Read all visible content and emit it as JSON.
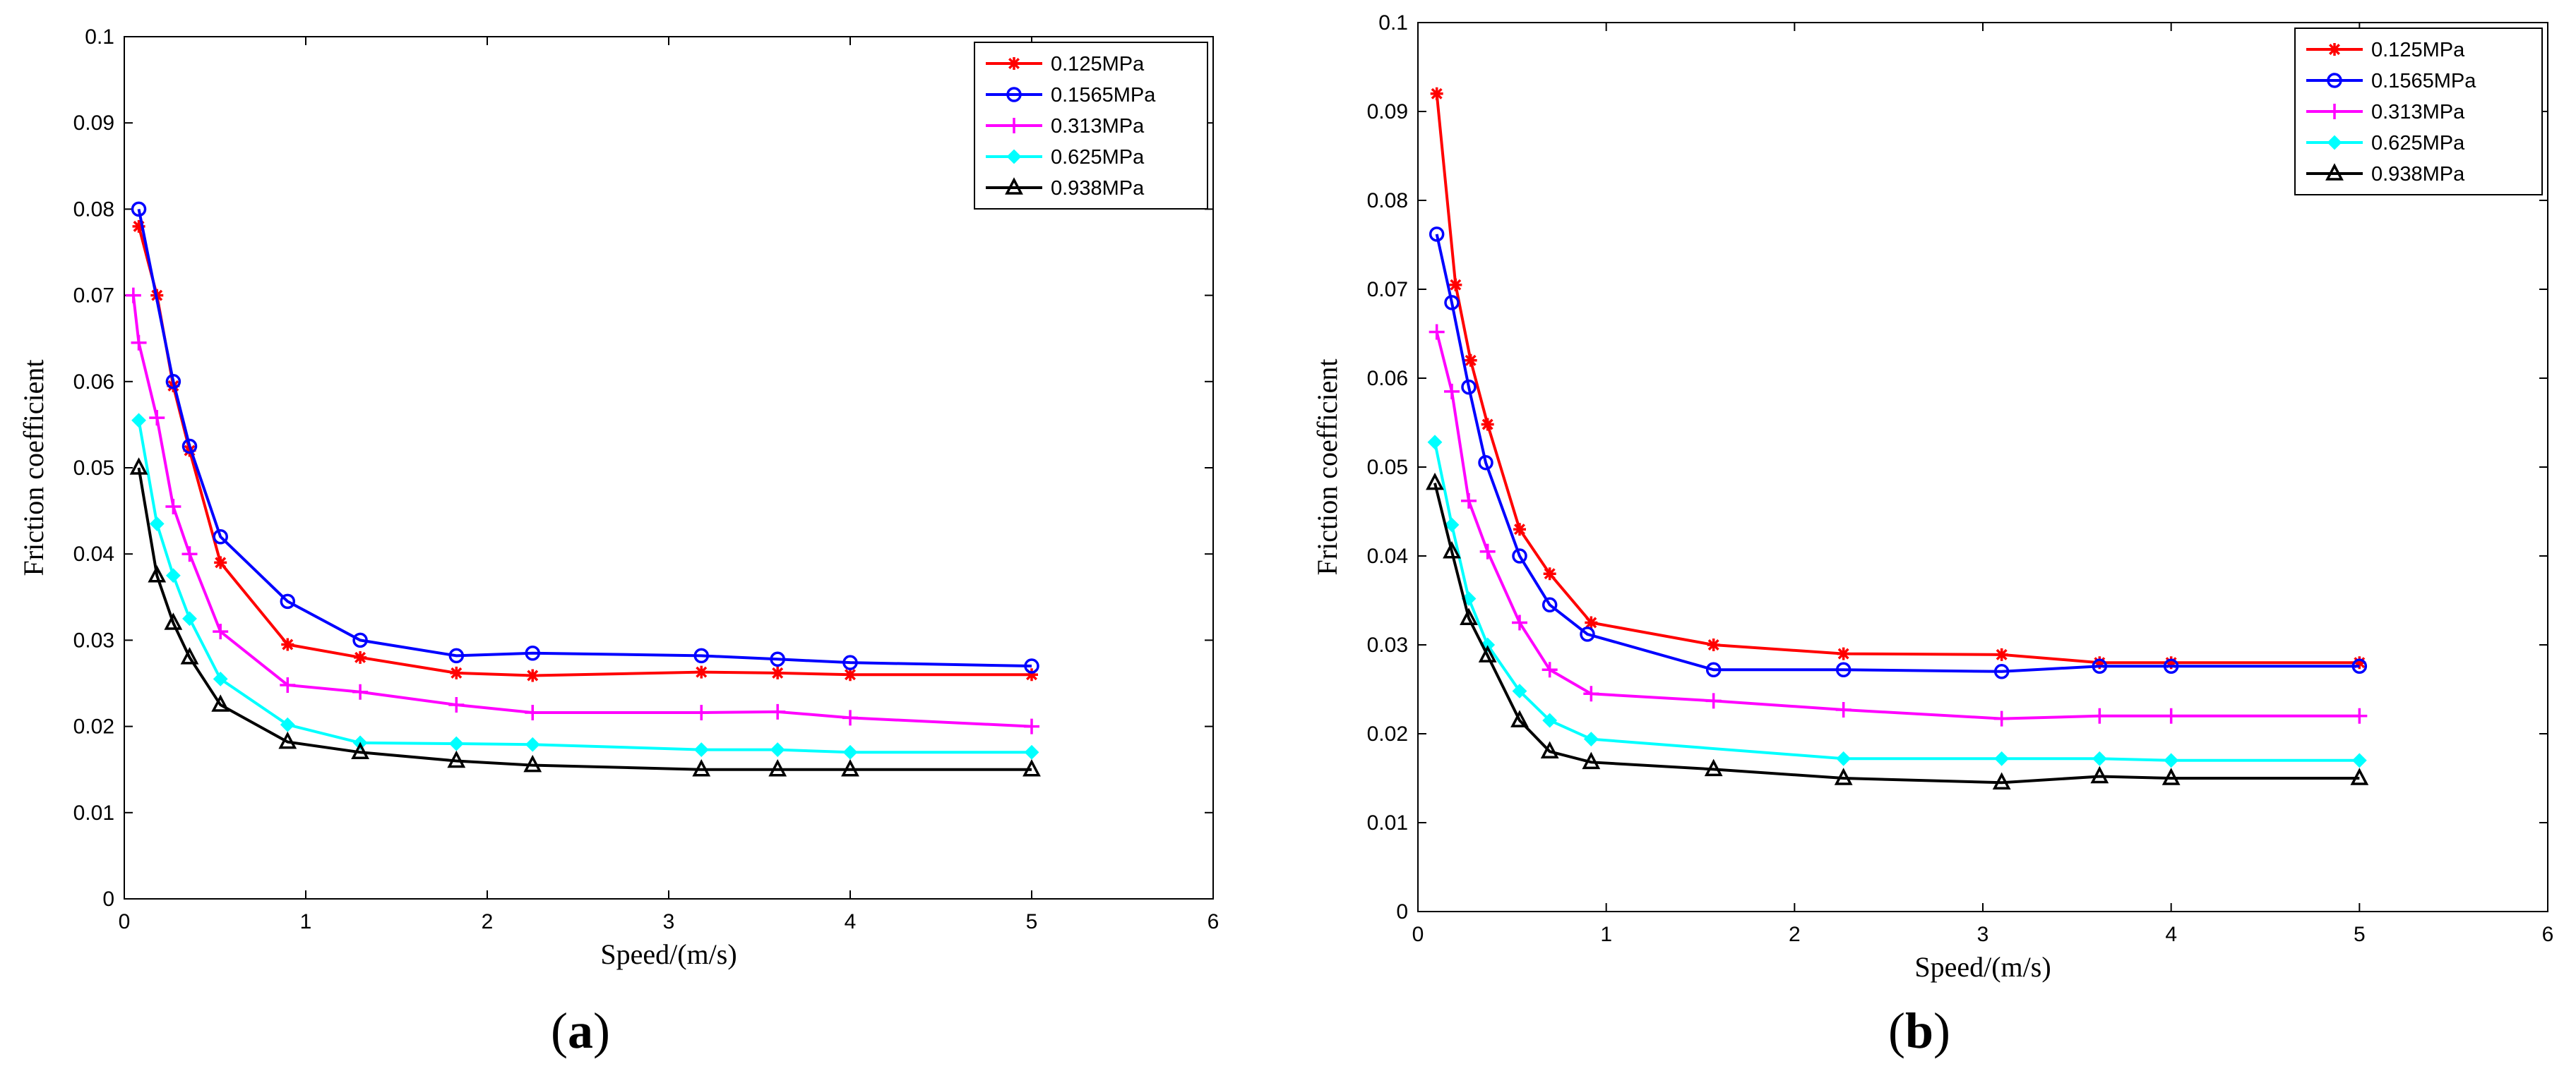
{
  "chart_data": [
    {
      "type": "line",
      "panel": "a",
      "caption_open": "(",
      "caption_letter": "a",
      "caption_close": ")",
      "xlabel": "Speed/(m/s)",
      "ylabel": "Friction coefficient",
      "xlim": [
        0,
        6
      ],
      "ylim": [
        0,
        0.1
      ],
      "xticks": [
        0,
        1,
        2,
        3,
        4,
        5,
        6
      ],
      "yticks": [
        0,
        0.01,
        0.02,
        0.03,
        0.04,
        0.05,
        0.06,
        0.07,
        0.08,
        0.09,
        0.1
      ],
      "xtick_labels": [
        "0",
        "1",
        "2",
        "3",
        "4",
        "5",
        "6"
      ],
      "ytick_labels": [
        "0",
        "0.01",
        "0.02",
        "0.03",
        "0.04",
        "0.05",
        "0.06",
        "0.07",
        "0.08",
        "0.09",
        "0.1"
      ],
      "legend_position": "top-right",
      "series": [
        {
          "name": "0.125MPa",
          "color": "#ff0000",
          "marker": "asterisk",
          "x": [
            0.08,
            0.18,
            0.27,
            0.36,
            0.53,
            0.9,
            1.3,
            1.83,
            2.25,
            3.18,
            3.6,
            4.0,
            5.0
          ],
          "y": [
            0.078,
            0.07,
            0.0595,
            0.052,
            0.039,
            0.0295,
            0.028,
            0.0262,
            0.0259,
            0.0263,
            0.0262,
            0.026,
            0.026
          ]
        },
        {
          "name": "0.1565MPa",
          "color": "#0000ff",
          "marker": "circle",
          "x": [
            0.08,
            0.27,
            0.36,
            0.53,
            0.9,
            1.3,
            1.83,
            2.25,
            3.18,
            3.6,
            4.0,
            5.0
          ],
          "y": [
            0.08,
            0.06,
            0.0525,
            0.042,
            0.0345,
            0.03,
            0.0282,
            0.0285,
            0.0282,
            0.0278,
            0.0274,
            0.027
          ]
        },
        {
          "name": "0.313MPa",
          "color": "#ff00ff",
          "marker": "plus",
          "x": [
            0.05,
            0.08,
            0.18,
            0.27,
            0.36,
            0.53,
            0.9,
            1.3,
            1.83,
            2.25,
            3.18,
            3.6,
            4.0,
            5.0
          ],
          "y": [
            0.07,
            0.0645,
            0.0558,
            0.0455,
            0.04,
            0.031,
            0.0248,
            0.024,
            0.0225,
            0.0216,
            0.0216,
            0.0217,
            0.021,
            0.02
          ]
        },
        {
          "name": "0.625MPa",
          "color": "#00ffff",
          "marker": "diamond",
          "x": [
            0.08,
            0.18,
            0.27,
            0.36,
            0.53,
            0.9,
            1.3,
            1.83,
            2.25,
            3.18,
            3.6,
            4.0,
            5.0
          ],
          "y": [
            0.0555,
            0.0435,
            0.0375,
            0.0325,
            0.0255,
            0.0202,
            0.0181,
            0.018,
            0.0179,
            0.0173,
            0.0173,
            0.017,
            0.017
          ]
        },
        {
          "name": "0.938MPa",
          "color": "#000000",
          "marker": "triangle",
          "x": [
            0.08,
            0.18,
            0.27,
            0.36,
            0.53,
            0.9,
            1.3,
            1.83,
            2.25,
            3.18,
            3.6,
            4.0,
            5.0
          ],
          "y": [
            0.05,
            0.0375,
            0.032,
            0.028,
            0.0225,
            0.0182,
            0.017,
            0.016,
            0.0155,
            0.015,
            0.015,
            0.015,
            0.015
          ]
        }
      ]
    },
    {
      "type": "line",
      "panel": "b",
      "caption_open": "(",
      "caption_letter": "b",
      "caption_close": ")",
      "xlabel": "Speed/(m/s)",
      "ylabel": "Friction coefficient",
      "xlim": [
        0,
        6
      ],
      "ylim": [
        0,
        0.1
      ],
      "xticks": [
        0,
        1,
        2,
        3,
        4,
        5,
        6
      ],
      "yticks": [
        0,
        0.01,
        0.02,
        0.03,
        0.04,
        0.05,
        0.06,
        0.07,
        0.08,
        0.09,
        0.1
      ],
      "xtick_labels": [
        "0",
        "1",
        "2",
        "3",
        "4",
        "5",
        "6"
      ],
      "ytick_labels": [
        "0",
        "0.01",
        "0.02",
        "0.03",
        "0.04",
        "0.05",
        "0.06",
        "0.07",
        "0.08",
        "0.09",
        "0.1"
      ],
      "legend_position": "top-right",
      "series": [
        {
          "name": "0.125MPa",
          "color": "#ff0000",
          "marker": "asterisk",
          "x": [
            0.1,
            0.2,
            0.28,
            0.37,
            0.54,
            0.7,
            0.92,
            1.57,
            2.26,
            3.1,
            3.62,
            4.0,
            5.0
          ],
          "y": [
            0.092,
            0.0705,
            0.062,
            0.0548,
            0.043,
            0.038,
            0.0325,
            0.03,
            0.029,
            0.0289,
            0.028,
            0.028,
            0.028
          ]
        },
        {
          "name": "0.1565MPa",
          "color": "#0000ff",
          "marker": "circle",
          "x": [
            0.1,
            0.18,
            0.27,
            0.36,
            0.54,
            0.7,
            0.9,
            1.57,
            2.26,
            3.1,
            3.62,
            4.0,
            5.0
          ],
          "y": [
            0.0762,
            0.0685,
            0.059,
            0.0505,
            0.04,
            0.0345,
            0.0312,
            0.0272,
            0.0272,
            0.027,
            0.0276,
            0.0276,
            0.0276
          ]
        },
        {
          "name": "0.313MPa",
          "color": "#ff00ff",
          "marker": "plus",
          "x": [
            0.1,
            0.18,
            0.27,
            0.37,
            0.54,
            0.7,
            0.92,
            1.57,
            2.26,
            3.1,
            3.62,
            4.0,
            5.0
          ],
          "y": [
            0.0652,
            0.0585,
            0.0462,
            0.0405,
            0.0325,
            0.0272,
            0.0245,
            0.0237,
            0.0227,
            0.0217,
            0.022,
            0.022,
            0.022
          ]
        },
        {
          "name": "0.625MPa",
          "color": "#00ffff",
          "marker": "diamond",
          "x": [
            0.09,
            0.18,
            0.27,
            0.37,
            0.54,
            0.7,
            0.92,
            2.26,
            3.1,
            3.62,
            4.0,
            5.0
          ],
          "y": [
            0.0528,
            0.0435,
            0.0352,
            0.03,
            0.0248,
            0.0215,
            0.0194,
            0.0172,
            0.0172,
            0.0172,
            0.017,
            0.017
          ]
        },
        {
          "name": "0.938MPa",
          "color": "#000000",
          "marker": "triangle",
          "x": [
            0.09,
            0.18,
            0.27,
            0.37,
            0.54,
            0.7,
            0.92,
            1.57,
            2.26,
            3.1,
            3.62,
            4.0,
            5.0
          ],
          "y": [
            0.0482,
            0.0405,
            0.033,
            0.0288,
            0.0215,
            0.018,
            0.0168,
            0.016,
            0.015,
            0.0145,
            0.0152,
            0.015,
            0.015
          ]
        }
      ]
    }
  ]
}
